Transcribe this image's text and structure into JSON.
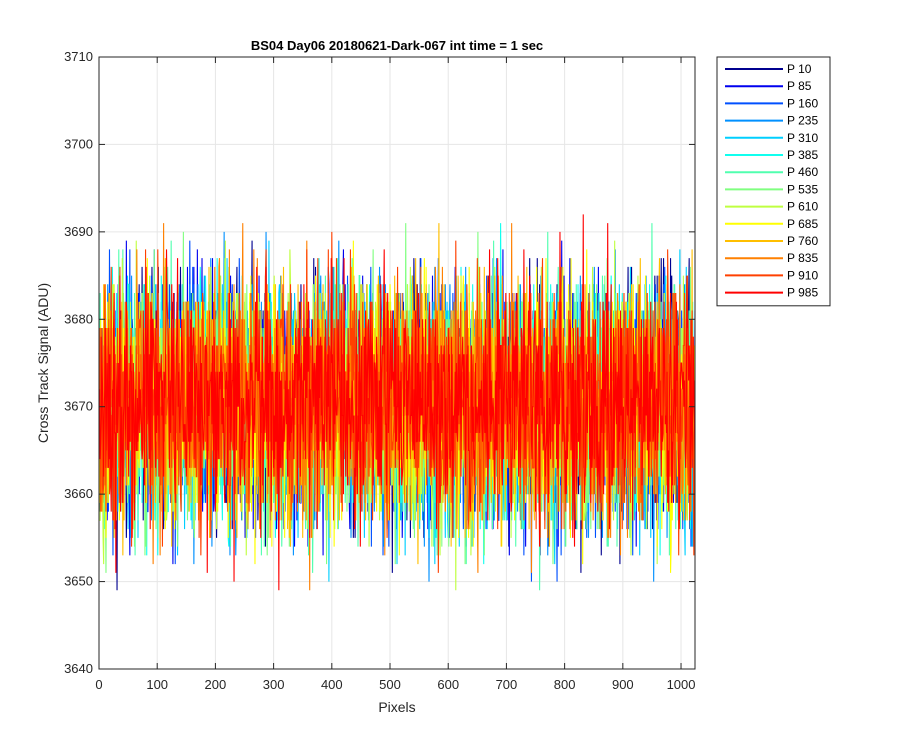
{
  "chart_data": {
    "type": "line",
    "title": "BS04 Day06 20180621-Dark-067 int time = 1 sec",
    "xlabel": "Pixels",
    "ylabel": "Cross Track Signal (ADU)",
    "xlim": [
      0,
      1024
    ],
    "ylim": [
      3640,
      3710
    ],
    "xticks": [
      "0",
      "100",
      "200",
      "300",
      "400",
      "500",
      "600",
      "700",
      "800",
      "900",
      "1000"
    ],
    "yticks": [
      "3640",
      "3650",
      "3660",
      "3670",
      "3680",
      "3690",
      "3700",
      "3710"
    ],
    "grid": true,
    "legend_position": "outside-top-right",
    "n_points": 1024,
    "series": [
      {
        "name": "P 10",
        "color": "#00008F",
        "mean": 3670.5,
        "noise_sd": 7.0,
        "seed": 11
      },
      {
        "name": "P 85",
        "color": "#0000EF",
        "mean": 3670.5,
        "noise_sd": 7.0,
        "seed": 23
      },
      {
        "name": "P 160",
        "color": "#0050FF",
        "mean": 3670.5,
        "noise_sd": 7.0,
        "seed": 37
      },
      {
        "name": "P 235",
        "color": "#0090FF",
        "mean": 3670.5,
        "noise_sd": 7.0,
        "seed": 41
      },
      {
        "name": "P 310",
        "color": "#00CFFF",
        "mean": 3670.5,
        "noise_sd": 7.0,
        "seed": 53
      },
      {
        "name": "P 385",
        "color": "#10FFEF",
        "mean": 3670.5,
        "noise_sd": 7.0,
        "seed": 67
      },
      {
        "name": "P 460",
        "color": "#50FFAF",
        "mean": 3670.5,
        "noise_sd": 7.0,
        "seed": 71
      },
      {
        "name": "P 535",
        "color": "#80FF80",
        "mean": 3670.5,
        "noise_sd": 7.0,
        "seed": 83
      },
      {
        "name": "P 610",
        "color": "#BFFF40",
        "mean": 3670.5,
        "noise_sd": 7.0,
        "seed": 97
      },
      {
        "name": "P 685",
        "color": "#FFFF00",
        "mean": 3670.5,
        "noise_sd": 7.0,
        "seed": 101
      },
      {
        "name": "P 760",
        "color": "#FFBF00",
        "mean": 3670.5,
        "noise_sd": 7.0,
        "seed": 113
      },
      {
        "name": "P 835",
        "color": "#FF8000",
        "mean": 3670.5,
        "noise_sd": 7.0,
        "seed": 127
      },
      {
        "name": "P 910",
        "color": "#FF4000",
        "mean": 3670.5,
        "noise_sd": 7.0,
        "seed": 131
      },
      {
        "name": "P 985",
        "color": "#FF0000",
        "mean": 3670.5,
        "noise_sd": 7.0,
        "seed": 149
      }
    ]
  }
}
